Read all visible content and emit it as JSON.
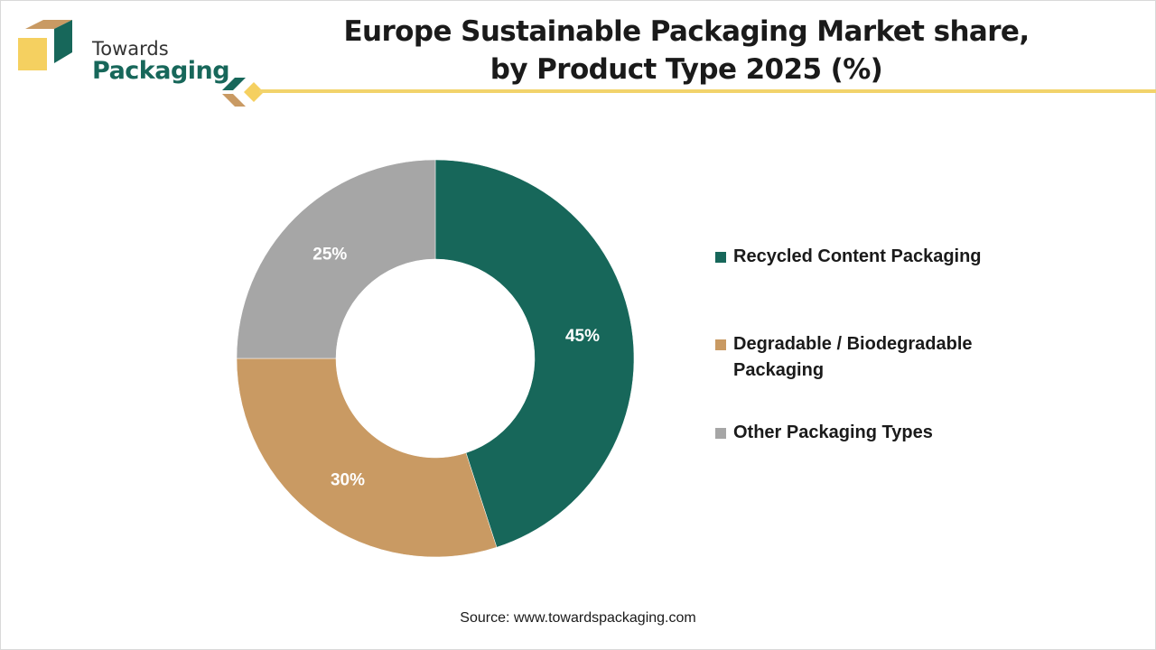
{
  "brand": {
    "name_top": "Towards",
    "name_main": "Packaging"
  },
  "colors": {
    "green": "#17675a",
    "tan": "#c99a63",
    "gray": "#a6a6a6",
    "gold": "#f2d36b"
  },
  "chart_data": {
    "type": "pie",
    "donut": true,
    "title": "Europe Sustainable Packaging Market share, by Product Type 2025 (%)",
    "title_lines": [
      "Europe Sustainable Packaging Market share,",
      "by Product Type 2025 (%)"
    ],
    "categories": [
      "Recycled Content Packaging",
      "Degradable / Biodegradable Packaging",
      "Other Packaging Types"
    ],
    "values": [
      45,
      30,
      25
    ],
    "labels": [
      "45%",
      "30%",
      "25%"
    ],
    "unit": "%",
    "legend_position": "right",
    "colors": [
      "#17675a",
      "#c99a63",
      "#a6a6a6"
    ]
  },
  "legend": {
    "items": [
      {
        "lines": [
          "Recycled Content Packaging"
        ]
      },
      {
        "lines": [
          "Degradable / Biodegradable",
          "Packaging"
        ]
      },
      {
        "lines": [
          "Other Packaging Types"
        ]
      }
    ]
  },
  "source": "Source: www.towardspackaging.com"
}
